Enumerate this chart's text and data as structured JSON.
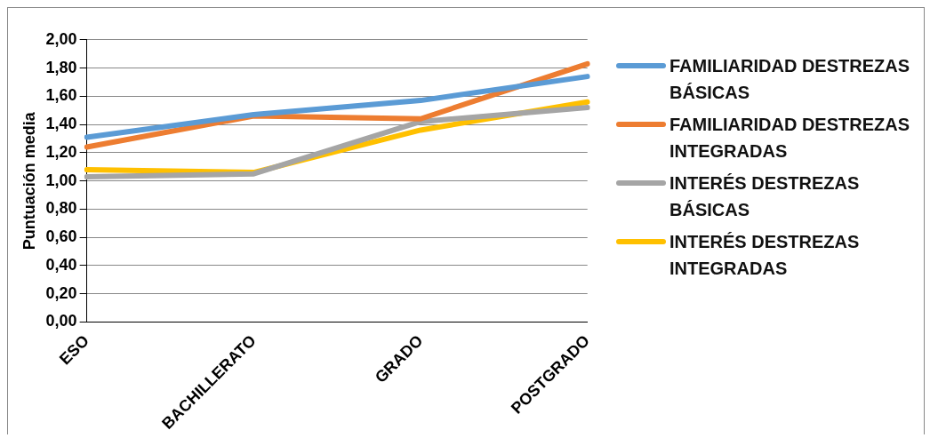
{
  "chart_data": {
    "type": "line",
    "ylabel": "Puntuación media",
    "categories": [
      "ESO",
      "BACHILLERATO",
      "GRADO",
      "POSTGRADO"
    ],
    "series": [
      {
        "name": "FAMILIARIDAD DESTREZAS BÁSICAS",
        "color": "#5b9bd5",
        "values": [
          1.31,
          1.47,
          1.57,
          1.74
        ]
      },
      {
        "name": "FAMILIARIDAD DESTREZAS INTEGRADAS",
        "color": "#ed7d31",
        "values": [
          1.24,
          1.46,
          1.44,
          1.83
        ]
      },
      {
        "name": "INTERÉS DESTREZAS BÁSICAS",
        "color": "#a5a5a5",
        "values": [
          1.03,
          1.05,
          1.42,
          1.52
        ]
      },
      {
        "name": "INTERÉS DESTREZAS INTEGRADAS",
        "color": "#ffc000",
        "values": [
          1.08,
          1.06,
          1.36,
          1.56
        ]
      }
    ],
    "ylim": [
      0,
      2
    ],
    "yticks": [
      {
        "value": 0,
        "label": "0,00"
      },
      {
        "value": 0.2,
        "label": "0,20"
      },
      {
        "value": 0.4,
        "label": "0,40"
      },
      {
        "value": 0.6,
        "label": "0,60"
      },
      {
        "value": 0.8,
        "label": "0,80"
      },
      {
        "value": 1,
        "label": "1,00"
      },
      {
        "value": 1.2,
        "label": "1,20"
      },
      {
        "value": 1.4,
        "label": "1,40"
      },
      {
        "value": 1.6,
        "label": "1,60"
      },
      {
        "value": 1.8,
        "label": "1,80"
      },
      {
        "value": 2,
        "label": "2,00"
      }
    ],
    "grid": "y",
    "legend": "right",
    "marker": "none",
    "line_style": "solid"
  }
}
